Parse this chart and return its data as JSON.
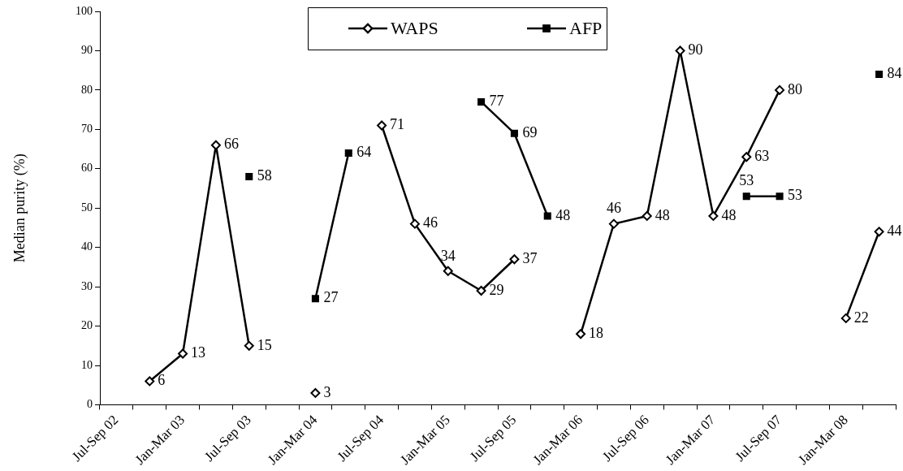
{
  "chart_data": {
    "type": "line",
    "ylabel": "Median purity (%)",
    "categories": [
      "Jul-Sep 02",
      null,
      "Jan-Mar 03",
      null,
      "Jul-Sep 03",
      null,
      "Jan-Mar 04",
      null,
      "Jul-Sep 04",
      null,
      "Jan-Mar 05",
      null,
      "Jul-Sep 05",
      null,
      "Jan-Mar 06",
      null,
      "Jul-Sep 06",
      null,
      "Jan-Mar 07",
      null,
      "Jul-Sep 07",
      null,
      "Jan-Mar 08",
      null
    ],
    "series": [
      {
        "name": "WAPS",
        "color": "#000000",
        "marker": "diamond",
        "values": [
          null,
          6,
          13,
          66,
          15,
          null,
          3,
          null,
          71,
          46,
          34,
          29,
          37,
          null,
          18,
          46,
          48,
          90,
          48,
          63,
          80,
          null,
          22,
          44
        ]
      },
      {
        "name": "AFP",
        "color": "#000000",
        "marker": "square",
        "values": [
          null,
          null,
          null,
          null,
          58,
          null,
          27,
          64,
          null,
          null,
          null,
          77,
          69,
          48,
          null,
          null,
          null,
          null,
          null,
          53,
          53,
          null,
          null,
          84
        ]
      }
    ],
    "ylim": [
      0,
      100
    ],
    "yticks": [
      0,
      10,
      20,
      30,
      40,
      50,
      60,
      70,
      80,
      90,
      100
    ],
    "grid": false,
    "legend": "top",
    "data_labels": true,
    "line_style": "solid"
  }
}
